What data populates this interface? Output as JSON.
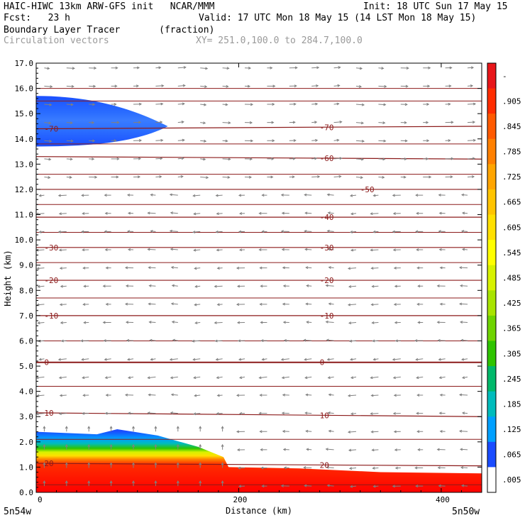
{
  "header": {
    "line1_left": "HAIC-HIWC 13km ARW-GFS init   NCAR/MMM",
    "line1_right": "Init: 18 UTC Sun 17 May 15",
    "line2_left": "Fcst:   23 h",
    "line2_right": "Valid: 17 UTC Mon 18 May 15 (14 LST Mon 18 May 15)",
    "line3_left": "Boundary Layer Tracer       (fraction)",
    "line4_left": "Circulation vectors",
    "line4_right": "XY= 251.0,100.0 to 284.7,100.0"
  },
  "footer": {
    "left_label": "5n54w",
    "right_label": "5n50w"
  },
  "colors": {
    "contour": "#8b1a1a",
    "vector": "#808080"
  },
  "chart_data": {
    "type": "heatmap",
    "xlabel": "Distance (km)",
    "ylabel": "Height (km)",
    "xlim": [
      0,
      440
    ],
    "ylim": [
      0,
      17
    ],
    "x_ticks": [
      "0",
      "200",
      "400"
    ],
    "x_tick_values": [
      0,
      200,
      400
    ],
    "y_ticks": [
      "0.0",
      "1.0",
      "2.0",
      "3.0",
      "4.0",
      "5.0",
      "6.0",
      "7.0",
      "8.0",
      "9.0",
      "10.0",
      "11.0",
      "12.0",
      "13.0",
      "14.0",
      "15.0",
      "16.0",
      "17.0"
    ],
    "colorbar": {
      "labels": [
        "-",
        ".905",
        ".845",
        ".785",
        ".725",
        ".665",
        ".605",
        ".545",
        ".485",
        ".425",
        ".365",
        ".305",
        ".245",
        ".185",
        ".125",
        ".065",
        ".005"
      ],
      "colors": [
        "#e8161a",
        "#ff2d00",
        "#ff5a00",
        "#ff8000",
        "#ffa500",
        "#ffc400",
        "#ffe000",
        "#ffff00",
        "#d7f200",
        "#a8e400",
        "#6fd400",
        "#2fc400",
        "#00b86a",
        "#00bcbc",
        "#00a0ff",
        "#1a4cff",
        "#ffffff"
      ]
    },
    "tracer_top_km": [
      {
        "x": 0,
        "top": 2.4
      },
      {
        "x": 60,
        "top": 2.3
      },
      {
        "x": 80,
        "top": 2.5
      },
      {
        "x": 120,
        "top": 2.25
      },
      {
        "x": 160,
        "top": 1.8
      },
      {
        "x": 185,
        "top": 1.4
      },
      {
        "x": 190,
        "top": 1.0
      },
      {
        "x": 260,
        "top": 0.95
      },
      {
        "x": 340,
        "top": 0.8
      },
      {
        "x": 440,
        "top": 0.75
      }
    ],
    "upper_plume": {
      "x_end": 130,
      "top_km": 15.7,
      "bottom_km": 13.7,
      "center_km": 14.5
    },
    "temperature_contours": [
      {
        "label": "-70",
        "y_left": 14.4,
        "y_right": 14.5,
        "label_positions": [
          8,
          280
        ]
      },
      {
        "label": "-60",
        "y_left": 13.3,
        "y_right": 13.2,
        "label_positions": [
          280
        ]
      },
      {
        "label": "-50",
        "y_left": 12.0,
        "y_right": 12.0,
        "label_positions": [
          320
        ]
      },
      {
        "label": "-40",
        "y_left": 10.9,
        "y_right": 10.9,
        "label_positions": [
          280
        ]
      },
      {
        "label": "-30",
        "y_left": 9.7,
        "y_right": 9.7,
        "label_positions": [
          8,
          280
        ]
      },
      {
        "label": "-20",
        "y_left": 8.4,
        "y_right": 8.4,
        "label_positions": [
          8,
          280
        ]
      },
      {
        "label": "-10",
        "y_left": 7.0,
        "y_right": 7.0,
        "label_positions": [
          8,
          280
        ]
      },
      {
        "label": "0",
        "y_left": 5.15,
        "y_right": 5.15,
        "label_positions": [
          8,
          280
        ]
      },
      {
        "label": "10",
        "y_left": 3.15,
        "y_right": 3.0,
        "label_positions": [
          8,
          280
        ]
      },
      {
        "label": "20",
        "y_left": 1.15,
        "y_right": 1.05,
        "label_positions": [
          8,
          280
        ]
      }
    ],
    "extra_contour_levels_km": [
      16.0,
      15.5,
      13.8,
      12.6,
      11.4,
      10.3,
      9.1,
      7.7,
      6.0,
      4.2,
      2.1,
      0.3
    ]
  }
}
